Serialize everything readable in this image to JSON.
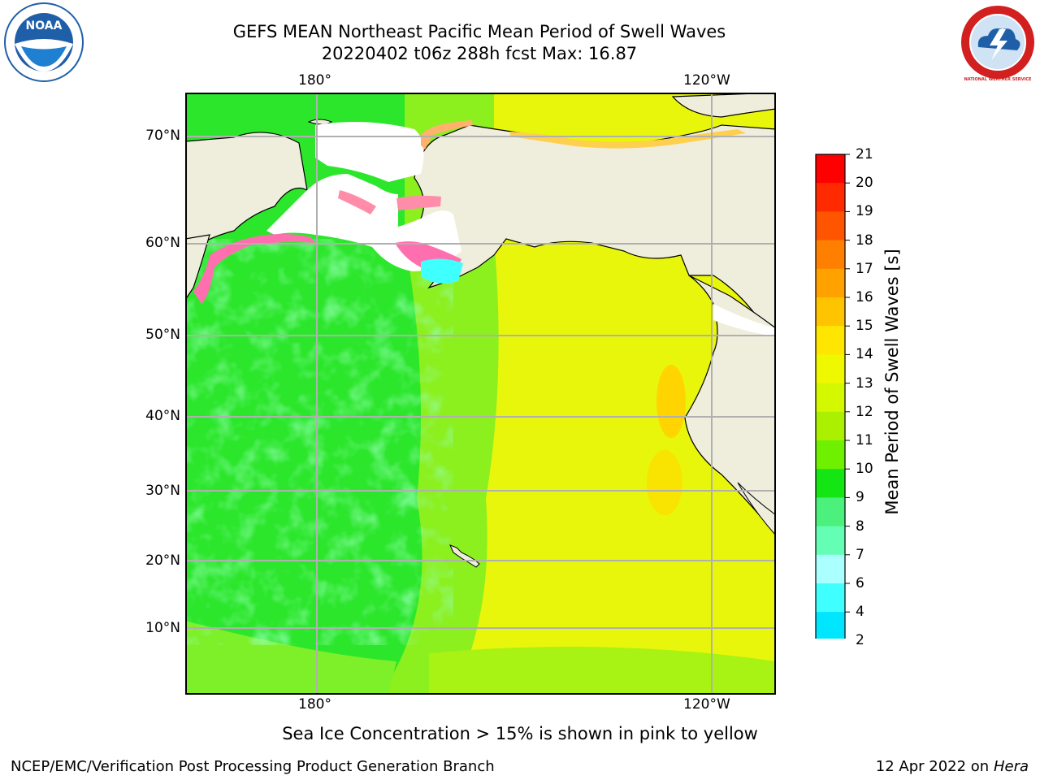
{
  "title": {
    "line1": "GEFS MEAN Northeast Pacific Mean Period of Swell Waves",
    "line2": "20220402 t06z 288h fcst   Max: 16.87"
  },
  "map": {
    "top_lon_labels": [
      "180°",
      "120°W"
    ],
    "bottom_lon_labels": [
      "180°",
      "120°W"
    ],
    "lat_labels": [
      "70°N",
      "60°N",
      "50°N",
      "40°N",
      "30°N",
      "20°N",
      "10°N"
    ],
    "colors": {
      "land": "#efeddc",
      "ice_free_white": "#ffffff",
      "grid": "#b0b0b0",
      "coast": "#000000"
    }
  },
  "colorbar": {
    "label": "Mean Period of Swell Waves [s]",
    "ticks": [
      "21",
      "20",
      "19",
      "18",
      "17",
      "16",
      "15",
      "14",
      "13",
      "12",
      "11",
      "10",
      "9",
      "8",
      "7",
      "6",
      "4",
      "2"
    ],
    "colors": [
      "#ff0000",
      "#ff2a00",
      "#ff5500",
      "#ff7f00",
      "#ffa200",
      "#ffc400",
      "#ffe600",
      "#f0f800",
      "#d4f800",
      "#aaf000",
      "#6ef000",
      "#14e614",
      "#4cf07c",
      "#64ffb4",
      "#aaffff",
      "#40ffff",
      "#00e6ff",
      "#0082ff"
    ],
    "extend_color": "#0000ff"
  },
  "caption": "Sea Ice Concentration > 15% is shown in pink to yellow",
  "footer": {
    "left": "NCEP/EMC/Verification Post Processing Product Generation Branch",
    "right_date": "12 Apr 2022 on",
    "right_host": "Hera"
  },
  "logos": {
    "noaa": {
      "text": "NOAA",
      "ring_color": "#1f5fa8"
    },
    "nws": {
      "text": "NATIONAL WEATHER SERVICE",
      "ring_color": "#d21f1f"
    }
  }
}
